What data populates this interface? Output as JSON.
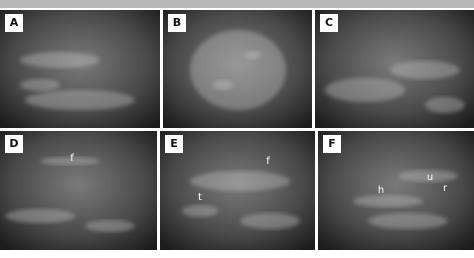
{
  "panels": [
    {
      "label": "A",
      "annotations": []
    },
    {
      "label": "B",
      "annotations": []
    },
    {
      "label": "C",
      "annotations": []
    },
    {
      "label": "D",
      "annotations": [
        {
          "text": "f"
        }
      ]
    },
    {
      "label": "E",
      "annotations": [
        {
          "text": "t"
        },
        {
          "text": "f"
        }
      ]
    },
    {
      "label": "F",
      "annotations": [
        {
          "text": "h"
        },
        {
          "text": "u"
        },
        {
          "text": "r"
        }
      ]
    }
  ]
}
